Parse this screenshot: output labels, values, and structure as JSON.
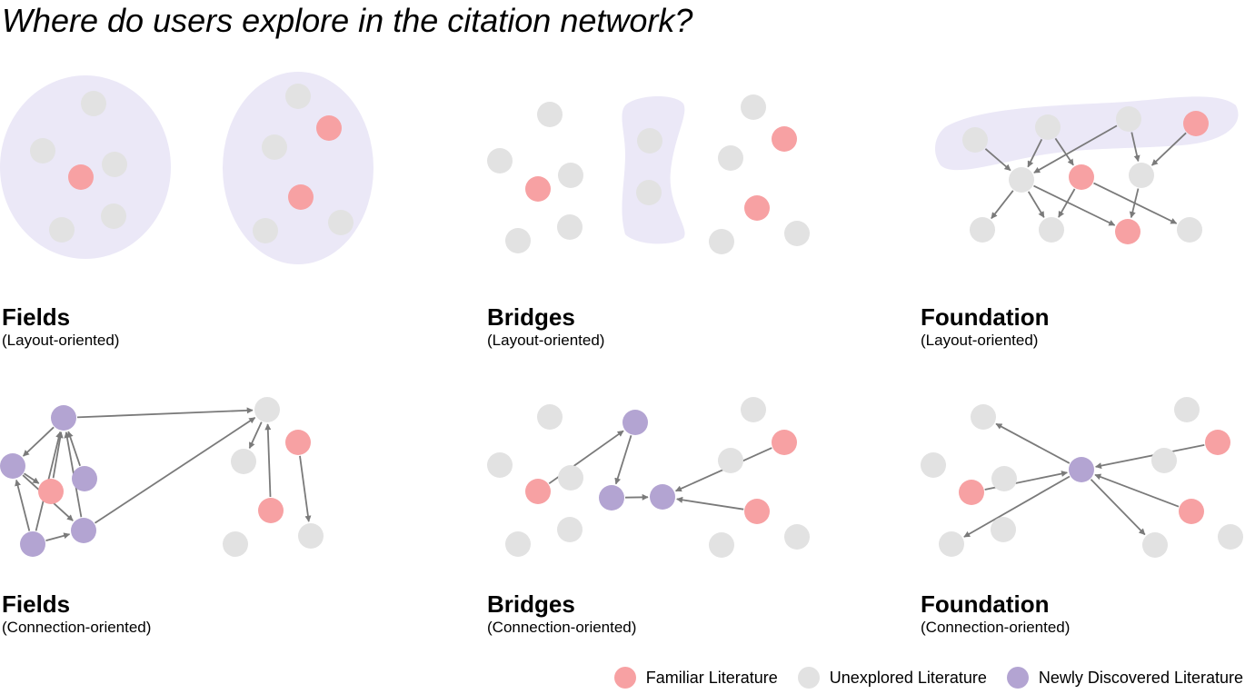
{
  "title": "Where do users explore in the citation network?",
  "colors": {
    "familiar": "#f7a1a3",
    "unexplored": "#e2e2e2",
    "newly": "#b3a4d2",
    "region": "#ebe8f7",
    "arrow": "#7a7a7a"
  },
  "captions": {
    "fields_layout": {
      "name": "Fields",
      "sub": "(Layout-oriented)"
    },
    "bridges_layout": {
      "name": "Bridges",
      "sub": "(Layout-oriented)"
    },
    "foundation_layout": {
      "name": "Foundation",
      "sub": "(Layout-oriented)"
    },
    "fields_conn": {
      "name": "Fields",
      "sub": "(Connection-oriented)"
    },
    "bridges_conn": {
      "name": "Bridges",
      "sub": "(Connection-oriented)"
    },
    "foundation_conn": {
      "name": "Foundation",
      "sub": "(Connection-oriented)"
    }
  },
  "legend": {
    "familiar": "Familiar Literature",
    "unexplored": "Unexplored Literature",
    "newly": "Newly Discovered Literature"
  }
}
